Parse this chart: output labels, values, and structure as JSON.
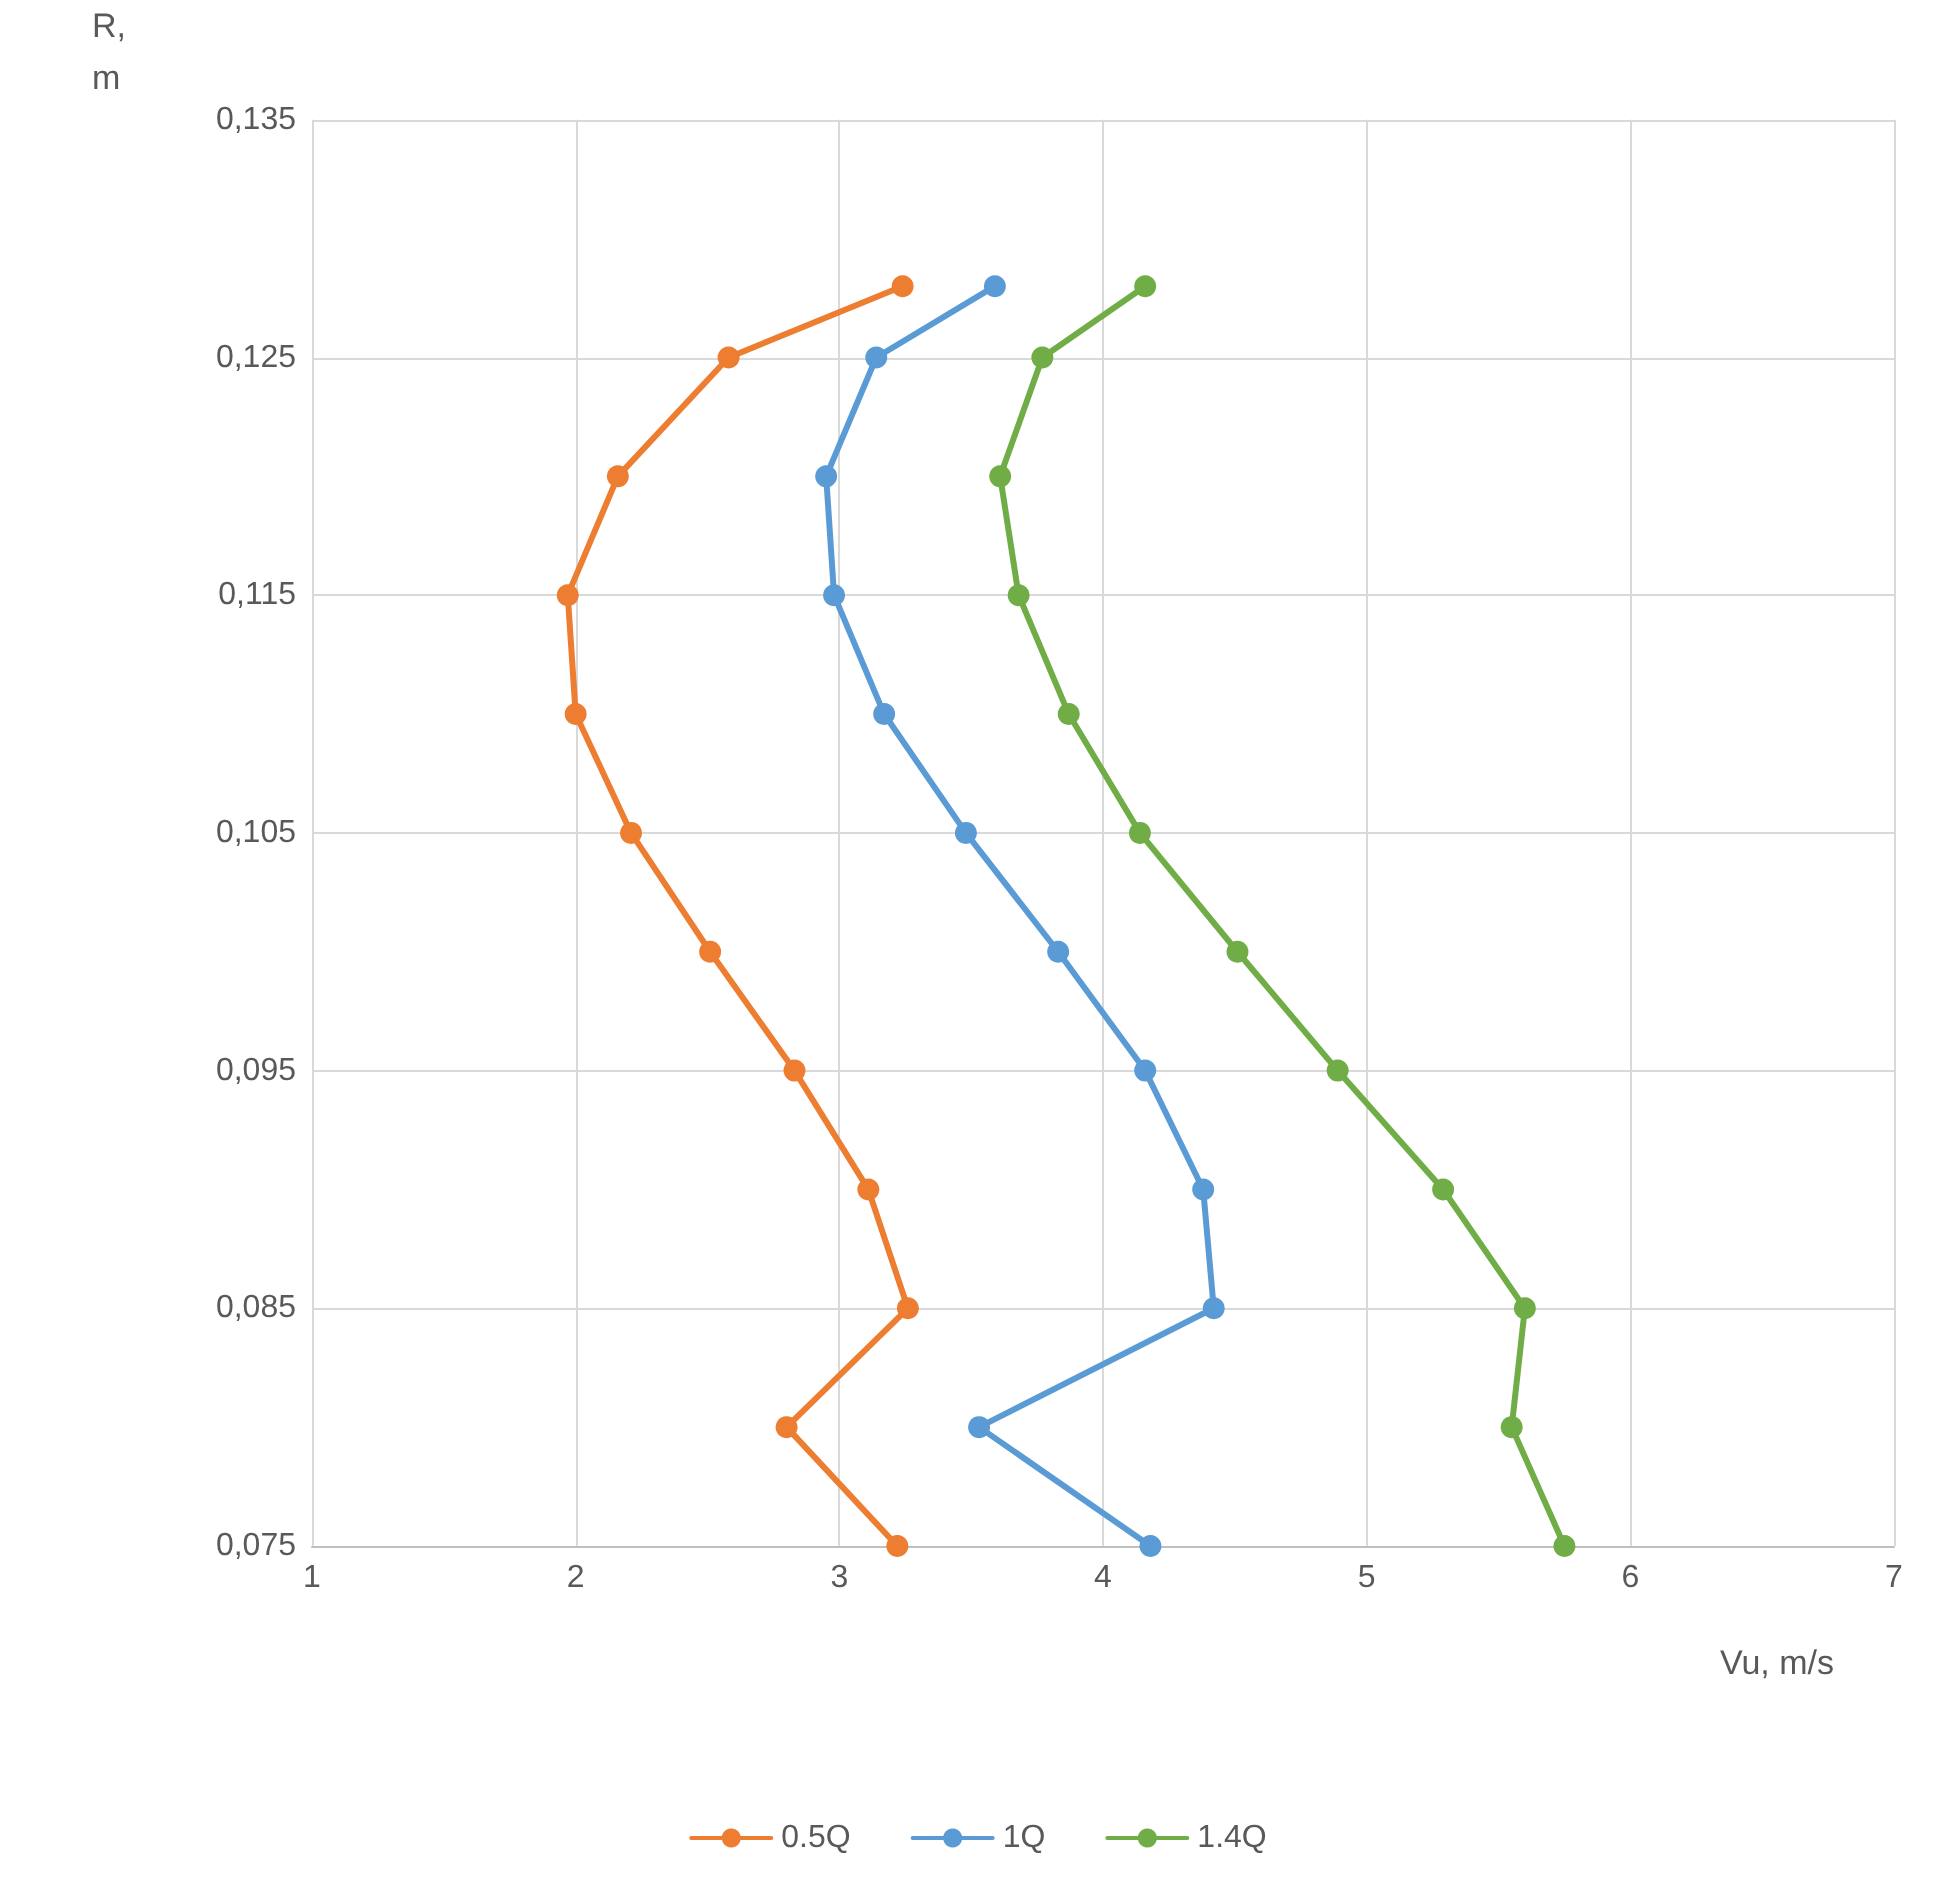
{
  "chart_data": {
    "type": "line",
    "xlabel": "Vu, m/s",
    "ylabel": "R, m",
    "xlim": [
      1,
      7
    ],
    "xticks": [
      1,
      2,
      3,
      4,
      5,
      6,
      7
    ],
    "ylim": [
      0.075,
      0.135
    ],
    "yticks": [
      {
        "value": 0.075,
        "label": "0,075"
      },
      {
        "value": 0.085,
        "label": "0,085"
      },
      {
        "value": 0.095,
        "label": "0,095"
      },
      {
        "value": 0.105,
        "label": "0,105"
      },
      {
        "value": 0.115,
        "label": "0,115"
      },
      {
        "value": 0.125,
        "label": "0,125"
      },
      {
        "value": 0.135,
        "label": "0,135"
      }
    ],
    "grid": true,
    "legend": "bottom",
    "marker": "circle",
    "line_style": "solid",
    "series": [
      {
        "name": "0.5Q",
        "color": "#ed7d31",
        "x": [
          3.24,
          2.58,
          2.16,
          1.97,
          2.0,
          2.21,
          2.51,
          2.83,
          3.11,
          3.26,
          2.8,
          3.22
        ],
        "values": [
          0.128,
          0.125,
          0.12,
          0.115,
          0.11,
          0.105,
          0.1,
          0.095,
          0.09,
          0.085,
          0.08,
          0.075
        ]
      },
      {
        "name": "1Q",
        "color": "#5b9bd5",
        "x": [
          3.59,
          3.14,
          2.95,
          2.98,
          3.17,
          3.48,
          3.83,
          4.16,
          4.38,
          4.42,
          3.53,
          4.18
        ],
        "values": [
          0.128,
          0.125,
          0.12,
          0.115,
          0.11,
          0.105,
          0.1,
          0.095,
          0.09,
          0.085,
          0.08,
          0.075
        ]
      },
      {
        "name": "1.4Q",
        "color": "#70ad47",
        "x": [
          4.16,
          3.77,
          3.61,
          3.68,
          3.87,
          4.14,
          4.51,
          4.89,
          5.29,
          5.6,
          5.55,
          5.75
        ],
        "values": [
          0.128,
          0.125,
          0.12,
          0.115,
          0.11,
          0.105,
          0.1,
          0.095,
          0.09,
          0.085,
          0.08,
          0.075
        ]
      }
    ]
  }
}
